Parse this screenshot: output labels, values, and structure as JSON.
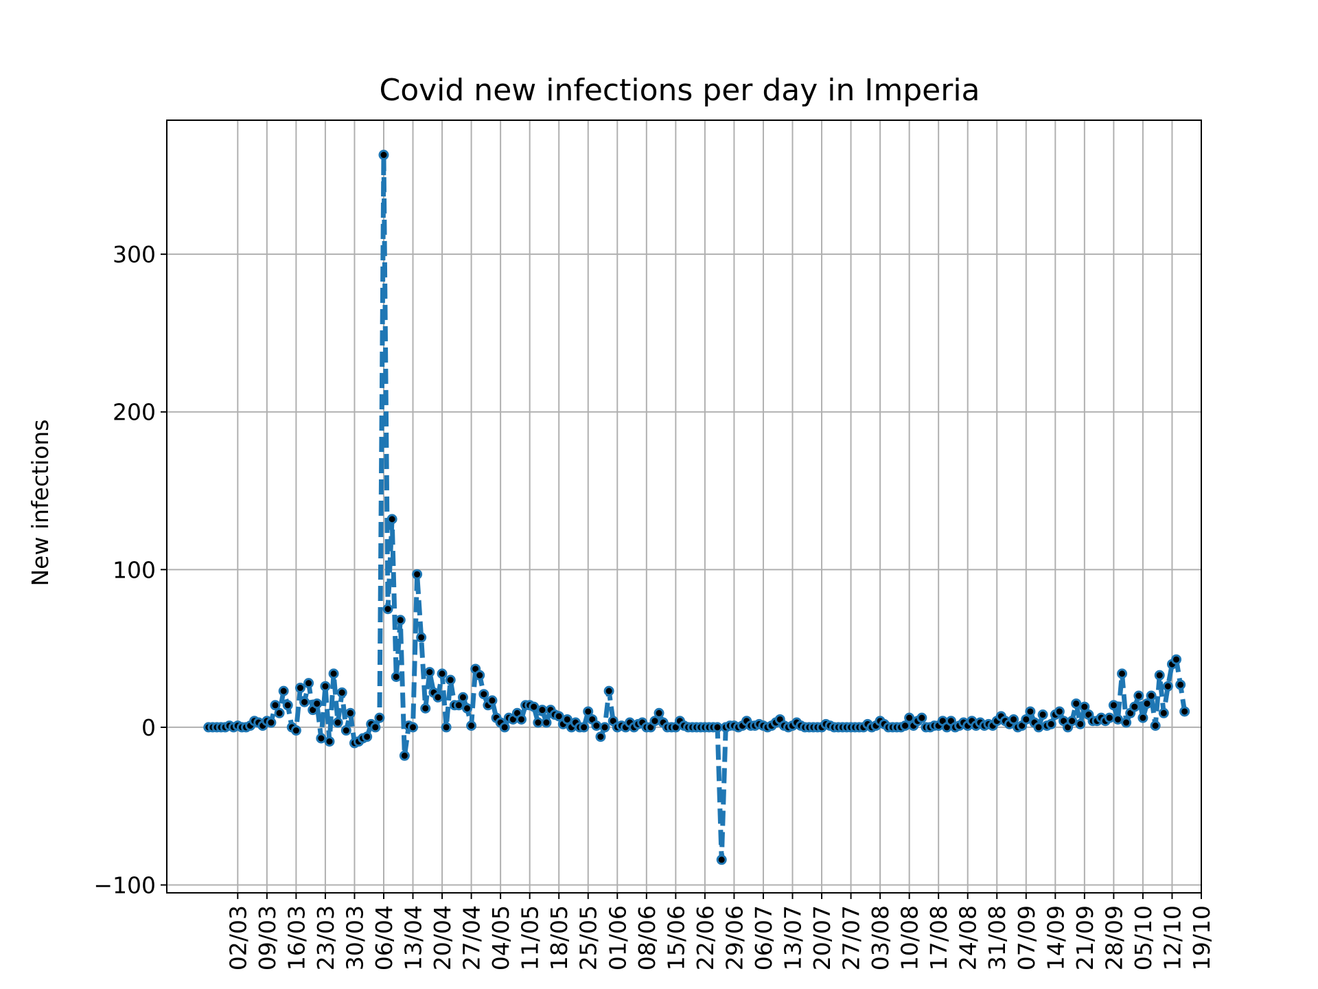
{
  "chart_data": {
    "type": "line",
    "title": "Covid new infections per day in Imperia",
    "xlabel": "",
    "ylabel": "New infections",
    "ylim": [
      -105,
      385
    ],
    "x_start": "2020-02-24",
    "xlim_days": [
      -10,
      238
    ],
    "grid": true,
    "line_color": "#1f77b4",
    "marker_color": "#000000",
    "y_ticks": [
      {
        "value": -100,
        "label": "−100"
      },
      {
        "value": 0,
        "label": "0"
      },
      {
        "value": 100,
        "label": "100"
      },
      {
        "value": 200,
        "label": "200"
      },
      {
        "value": 300,
        "label": "300"
      }
    ],
    "x_ticks": [
      {
        "day": 7,
        "label": "02/03"
      },
      {
        "day": 14,
        "label": "09/03"
      },
      {
        "day": 21,
        "label": "16/03"
      },
      {
        "day": 28,
        "label": "23/03"
      },
      {
        "day": 35,
        "label": "30/03"
      },
      {
        "day": 42,
        "label": "06/04"
      },
      {
        "day": 49,
        "label": "13/04"
      },
      {
        "day": 56,
        "label": "20/04"
      },
      {
        "day": 63,
        "label": "27/04"
      },
      {
        "day": 70,
        "label": "04/05"
      },
      {
        "day": 77,
        "label": "11/05"
      },
      {
        "day": 84,
        "label": "18/05"
      },
      {
        "day": 91,
        "label": "25/05"
      },
      {
        "day": 98,
        "label": "01/06"
      },
      {
        "day": 105,
        "label": "08/06"
      },
      {
        "day": 112,
        "label": "15/06"
      },
      {
        "day": 119,
        "label": "22/06"
      },
      {
        "day": 126,
        "label": "29/06"
      },
      {
        "day": 133,
        "label": "06/07"
      },
      {
        "day": 140,
        "label": "13/07"
      },
      {
        "day": 147,
        "label": "20/07"
      },
      {
        "day": 154,
        "label": "27/07"
      },
      {
        "day": 161,
        "label": "03/08"
      },
      {
        "day": 168,
        "label": "10/08"
      },
      {
        "day": 175,
        "label": "17/08"
      },
      {
        "day": 182,
        "label": "24/08"
      },
      {
        "day": 189,
        "label": "31/08"
      },
      {
        "day": 196,
        "label": "07/09"
      },
      {
        "day": 203,
        "label": "14/09"
      },
      {
        "day": 210,
        "label": "21/09"
      },
      {
        "day": 217,
        "label": "28/09"
      },
      {
        "day": 224,
        "label": "05/10"
      },
      {
        "day": 231,
        "label": "12/10"
      },
      {
        "day": 238,
        "label": "19/10"
      }
    ],
    "series": [
      {
        "values": [
          0,
          0,
          0,
          0,
          0,
          1,
          0,
          1,
          0,
          0,
          1,
          4,
          3,
          1,
          4,
          3,
          14,
          9,
          23,
          14,
          0,
          -2,
          25,
          16,
          28,
          11,
          15,
          -7,
          26,
          -9,
          34,
          3,
          22,
          -2,
          9,
          -10,
          -9,
          -7,
          -6,
          2,
          0,
          6,
          363,
          75,
          132,
          32,
          68,
          -18,
          1,
          0,
          97,
          57,
          12,
          35,
          22,
          19,
          34,
          0,
          30,
          14,
          14,
          19,
          12,
          1,
          37,
          33,
          21,
          14,
          17,
          6,
          3,
          0,
          6,
          5,
          9,
          5,
          14,
          14,
          13,
          3,
          11,
          3,
          11,
          8,
          7,
          2,
          5,
          0,
          3,
          0,
          0,
          10,
          5,
          1,
          -6,
          0,
          23,
          4,
          0,
          1,
          0,
          3,
          0,
          2,
          3,
          0,
          0,
          4,
          9,
          3,
          0,
          0,
          0,
          4,
          1,
          0,
          0,
          0,
          0,
          0,
          0,
          0,
          0,
          -84,
          0,
          1,
          1,
          0,
          1,
          4,
          1,
          1,
          2,
          1,
          0,
          1,
          3,
          5,
          1,
          0,
          1,
          3,
          1,
          0,
          0,
          0,
          0,
          0,
          2,
          1,
          0,
          0,
          0,
          0,
          0,
          0,
          0,
          0,
          2,
          0,
          1,
          4,
          2,
          0,
          0,
          0,
          0,
          1,
          6,
          1,
          4,
          6,
          0,
          0,
          1,
          1,
          4,
          0,
          4,
          0,
          1,
          3,
          1,
          4,
          1,
          3,
          1,
          2,
          1,
          4,
          7,
          4,
          2,
          5,
          0,
          1,
          5,
          10,
          3,
          0,
          8,
          1,
          2,
          8,
          10,
          4,
          0,
          4,
          15,
          2,
          13,
          8,
          4,
          4,
          6,
          4,
          6,
          14,
          5,
          34,
          3,
          9,
          13,
          20,
          6,
          15,
          20,
          1,
          33,
          9,
          26,
          40,
          43,
          27,
          10
        ]
      }
    ]
  }
}
